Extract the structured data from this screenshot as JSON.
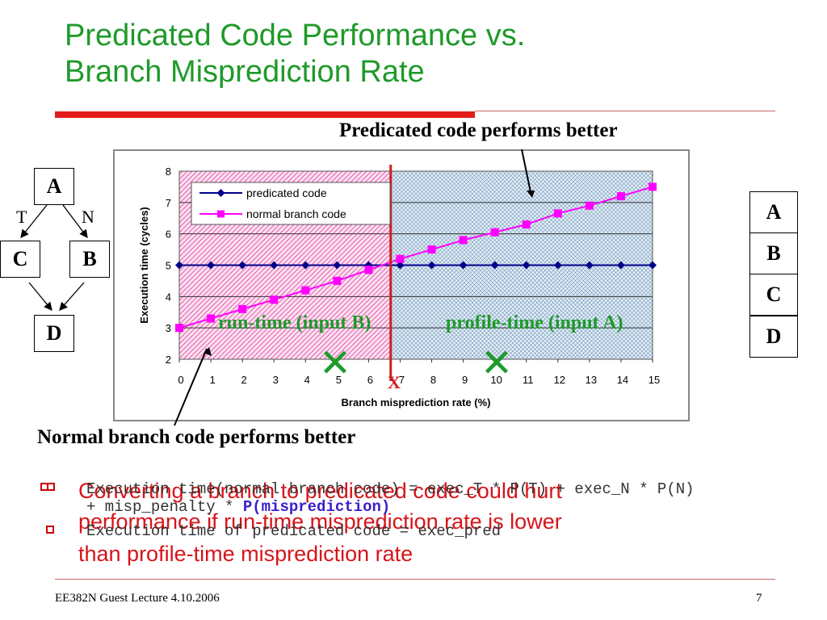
{
  "slide": {
    "title_line1": "Predicated Code Performance vs.",
    "title_line2": "Branch Misprediction Rate",
    "callout_top": "Predicated code performs better",
    "callout_bottom": "Normal branch code performs better",
    "runtime_label": "run-time (input B)",
    "profile_label": "profile-time (input A)",
    "x_marker": "X",
    "cross_glyph": "✕",
    "footer_left": "EE382N Guest Lecture 4.10.2006",
    "footer_page": "7"
  },
  "flow": {
    "nodes": [
      "A",
      "C",
      "B",
      "D"
    ],
    "edge_t": "T",
    "edge_n": "N"
  },
  "layout_stack": [
    "A",
    "B",
    "C",
    "D"
  ],
  "bullets": {
    "red_line1": "Converting a branch to predicated code could hurt",
    "red_line2": "performance if run-time misprediction rate is lower",
    "red_line3": "than profile-time misprediction rate",
    "black_line1": "Execution time(normal branch code) = exec_T * P(T) + exec_N * P(N)",
    "black_line2a": "+ misp_penalty  * ",
    "black_line2b": "P(misprediction)",
    "black_line3": "Execution time of predicated code = exec_pred"
  },
  "colors": {
    "title": "#1f9a2a",
    "accent_red": "#e31b1b",
    "predicated_series": "#00008b",
    "normal_series": "#ff00ff",
    "runtime_region": "#f7c9e6",
    "profile_region": "#cfe0ee"
  },
  "chart_data": {
    "type": "line",
    "xlabel": "Branch misprediction rate (%)",
    "ylabel": "Execution time (cycles)",
    "xlim": [
      0,
      15
    ],
    "ylim": [
      2,
      8
    ],
    "x": [
      0,
      1,
      2,
      3,
      4,
      5,
      6,
      7,
      8,
      9,
      10,
      11,
      12,
      13,
      14,
      15
    ],
    "x_ticks": [
      "0",
      "1",
      "2",
      "3",
      "4",
      "5",
      "6",
      "7",
      "8",
      "9",
      "10",
      "11",
      "12",
      "13",
      "14",
      "15"
    ],
    "y_ticks": [
      "2",
      "3",
      "4",
      "5",
      "6",
      "7",
      "8"
    ],
    "grid": true,
    "legend": "top-left",
    "crossover_x": 6.7,
    "series": [
      {
        "name": "predicated code",
        "values": [
          5,
          5,
          5,
          5,
          5,
          5,
          5,
          5,
          5,
          5,
          5,
          5,
          5,
          5,
          5,
          5
        ]
      },
      {
        "name": "normal branch code",
        "values": [
          3.0,
          3.3,
          3.6,
          3.9,
          4.2,
          4.5,
          4.85,
          5.2,
          5.5,
          5.8,
          6.05,
          6.3,
          6.65,
          6.9,
          7.2,
          7.5
        ]
      }
    ]
  }
}
